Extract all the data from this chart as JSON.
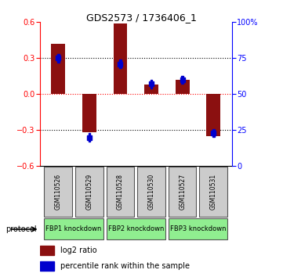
{
  "title": "GDS2573 / 1736406_1",
  "samples": [
    "GSM110526",
    "GSM110529",
    "GSM110528",
    "GSM110530",
    "GSM110527",
    "GSM110531"
  ],
  "log2_ratio": [
    0.42,
    -0.32,
    0.59,
    0.08,
    0.12,
    -0.35
  ],
  "percentile_rank": [
    75,
    20,
    71,
    57,
    60,
    23
  ],
  "groups": [
    {
      "label": "FBP1 knockdown",
      "samples": [
        0,
        1
      ],
      "color": "#90EE90"
    },
    {
      "label": "FBP2 knockdown",
      "samples": [
        2,
        3
      ],
      "color": "#90EE90"
    },
    {
      "label": "FBP3 knockdown",
      "samples": [
        4,
        5
      ],
      "color": "#90EE90"
    }
  ],
  "bar_color": "#8B1010",
  "pct_color": "#0000CD",
  "ylim_left": [
    -0.6,
    0.6
  ],
  "ylim_right": [
    0,
    100
  ],
  "yticks_left": [
    -0.6,
    -0.3,
    0.0,
    0.3,
    0.6
  ],
  "yticks_right": [
    0,
    25,
    50,
    75,
    100
  ],
  "ytick_labels_right": [
    "0",
    "25",
    "50",
    "75",
    "100%"
  ],
  "background_color": "#ffffff",
  "plot_bg": "#ffffff",
  "bar_width": 0.45,
  "pct_square_size": 0.07
}
